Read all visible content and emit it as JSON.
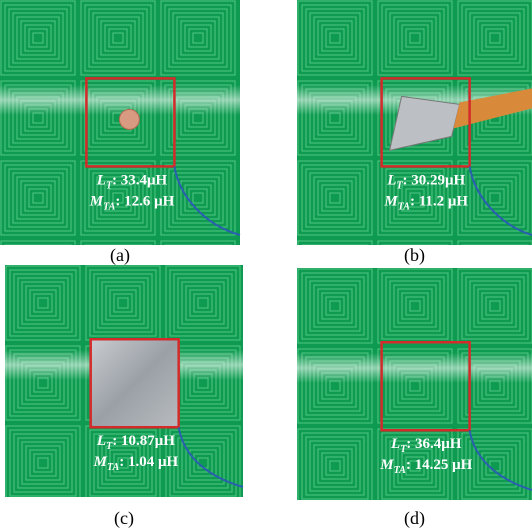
{
  "panels": [
    {
      "caption": "(a)",
      "lines": [
        {
          "symbol": "L",
          "sub": "T",
          "text": ": 33.4μH"
        },
        {
          "symbol": "M",
          "sub": "TA",
          "text": ": 12.6 μH"
        }
      ]
    },
    {
      "caption": "(b)",
      "lines": [
        {
          "symbol": "L",
          "sub": "T",
          "text": ": 30.29μH"
        },
        {
          "symbol": "M",
          "sub": "TA",
          "text": ": 11.2 μH"
        }
      ]
    },
    {
      "caption": "(c)",
      "lines": [
        {
          "symbol": "L",
          "sub": "T",
          "text": ": 10.87μH"
        },
        {
          "symbol": "M",
          "sub": "TA",
          "text": ": 1.04 μH"
        }
      ]
    },
    {
      "caption": "(d)",
      "lines": [
        {
          "symbol": "L",
          "sub": "T",
          "text": ": 36.4μH"
        },
        {
          "symbol": "M",
          "sub": "TA",
          "text": ": 14.25 μH"
        }
      ]
    }
  ]
}
